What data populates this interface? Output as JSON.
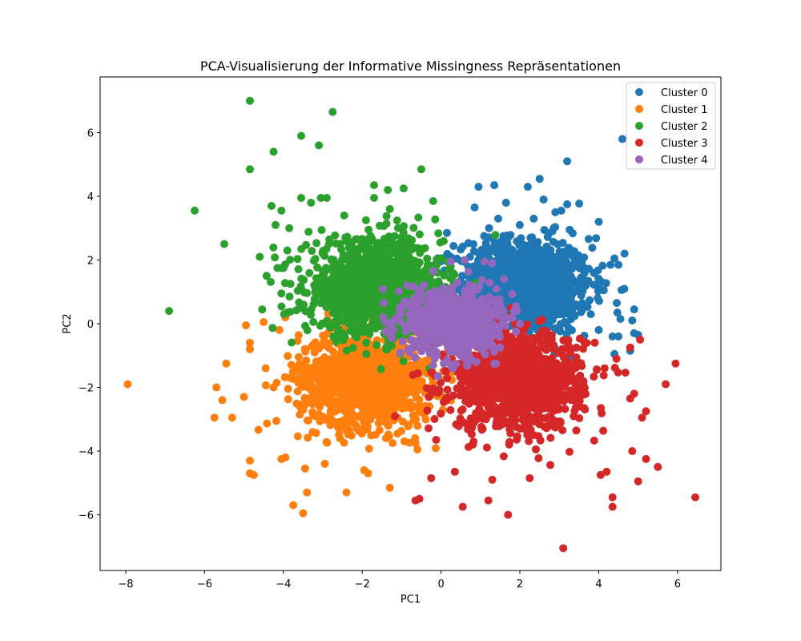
{
  "chart_data": {
    "type": "scatter",
    "title": "PCA-Visualisierung der Informative Missingness Repräsentationen",
    "xlabel": "PC1",
    "ylabel": "PC2",
    "xlim": [
      -8.65,
      7.1
    ],
    "ylim": [
      -7.75,
      7.75
    ],
    "xticks": [
      -8,
      -6,
      -4,
      -2,
      0,
      2,
      4,
      6
    ],
    "yticks": [
      -6,
      -4,
      -2,
      0,
      2,
      4,
      6
    ],
    "xtick_labels": [
      "−8",
      "−6",
      "−4",
      "−2",
      "0",
      "2",
      "4",
      "6"
    ],
    "ytick_labels": [
      "−6",
      "−4",
      "−2",
      "0",
      "2",
      "4",
      "6"
    ],
    "grid": false,
    "legend_position": "upper right",
    "series": [
      {
        "name": "Cluster 0",
        "color": "#1f77b4",
        "center": [
          2.1,
          1.2
        ],
        "spread": [
          0.85,
          0.75
        ],
        "points": [
          [
            4.6,
            5.8
          ],
          [
            3.2,
            5.1
          ],
          [
            2.5,
            4.55
          ],
          [
            1.35,
            4.35
          ],
          [
            0.95,
            4.3
          ],
          [
            2.2,
            4.3
          ],
          [
            2.6,
            3.9
          ],
          [
            1.65,
            3.8
          ],
          [
            3.2,
            3.75
          ],
          [
            3.05,
            3.55
          ],
          [
            2.9,
            3.5
          ],
          [
            0.85,
            3.65
          ],
          [
            4.0,
            3.2
          ],
          [
            1.45,
            3.3
          ],
          [
            2.35,
            3.3
          ],
          [
            0.15,
            2.85
          ],
          [
            4.4,
            2.05
          ],
          [
            4.3,
            1.85
          ],
          [
            4.5,
            1.85
          ],
          [
            4.9,
            0.45
          ],
          [
            4.55,
            0.15
          ],
          [
            4.85,
            0.1
          ],
          [
            4.9,
            -0.3
          ],
          [
            5.0,
            -0.35
          ],
          [
            4.5,
            -0.4
          ],
          [
            4.8,
            -0.85
          ],
          [
            4.4,
            -0.95
          ],
          [
            4.35,
            -0.4
          ],
          [
            4.0,
            -0.2
          ],
          [
            3.8,
            0.3
          ],
          [
            3.3,
            0.8
          ]
        ]
      },
      {
        "name": "Cluster 1",
        "color": "#ff7f0e",
        "center": [
          -1.9,
          -1.75
        ],
        "spread": [
          0.85,
          0.75
        ],
        "points": [
          [
            -7.95,
            -1.9
          ],
          [
            -5.75,
            -2.95
          ],
          [
            -5.7,
            -2.0
          ],
          [
            -5.55,
            -2.4
          ],
          [
            -5.3,
            -2.95
          ],
          [
            -5.0,
            -2.3
          ],
          [
            -4.95,
            -0.05
          ],
          [
            -4.85,
            -0.6
          ],
          [
            -4.85,
            -0.8
          ],
          [
            -5.45,
            -1.25
          ],
          [
            -4.85,
            -4.3
          ],
          [
            -4.85,
            -4.7
          ],
          [
            -4.75,
            -4.75
          ],
          [
            -4.5,
            0.05
          ],
          [
            -4.45,
            -1.4
          ],
          [
            -3.75,
            -5.7
          ],
          [
            -3.5,
            -5.95
          ],
          [
            -3.4,
            -5.3
          ],
          [
            -2.4,
            -5.3
          ],
          [
            -1.3,
            -5.15
          ],
          [
            -4.05,
            -4.25
          ],
          [
            -3.95,
            -4.2
          ],
          [
            -3.45,
            -4.55
          ],
          [
            -1.95,
            -4.6
          ],
          [
            -1.85,
            -4.7
          ],
          [
            -2.95,
            -4.4
          ],
          [
            -0.6,
            -3.95
          ],
          [
            -0.65,
            -3.75
          ],
          [
            -4.1,
            -0.2
          ],
          [
            -3.95,
            0.2
          ],
          [
            -4.25,
            -2.0
          ]
        ]
      },
      {
        "name": "Cluster 2",
        "color": "#2ca02c",
        "center": [
          -1.7,
          1.15
        ],
        "spread": [
          0.85,
          0.75
        ],
        "points": [
          [
            -4.85,
            7.0
          ],
          [
            -2.75,
            6.65
          ],
          [
            -3.55,
            5.9
          ],
          [
            -3.1,
            5.6
          ],
          [
            -4.25,
            5.4
          ],
          [
            -4.85,
            4.85
          ],
          [
            -0.5,
            4.85
          ],
          [
            -6.25,
            3.55
          ],
          [
            -5.5,
            2.5
          ],
          [
            -4.6,
            2.1
          ],
          [
            -6.9,
            0.4
          ],
          [
            -4.3,
            3.7
          ],
          [
            -4.05,
            3.55
          ],
          [
            -3.55,
            3.95
          ],
          [
            -3.3,
            3.8
          ],
          [
            -3.05,
            3.95
          ],
          [
            -2.9,
            3.95
          ],
          [
            -1.7,
            4.35
          ],
          [
            -1.7,
            3.95
          ],
          [
            -1.35,
            4.2
          ],
          [
            -0.95,
            4.25
          ],
          [
            -0.2,
            3.85
          ],
          [
            -1.3,
            3.6
          ],
          [
            -4.2,
            3.1
          ],
          [
            -3.85,
            3.0
          ],
          [
            -4.15,
            1.75
          ],
          [
            -4.0,
            1.75
          ],
          [
            -3.9,
            2.3
          ],
          [
            -4.05,
            0.95
          ],
          [
            -3.9,
            0.35
          ],
          [
            -1.9,
            -0.6
          ]
        ]
      },
      {
        "name": "Cluster 3",
        "color": "#d62728",
        "center": [
          1.9,
          -1.8
        ],
        "spread": [
          0.85,
          0.75
        ],
        "points": [
          [
            3.1,
            -7.05
          ],
          [
            0.55,
            -5.75
          ],
          [
            1.2,
            -5.55
          ],
          [
            1.7,
            -6.0
          ],
          [
            -0.55,
            -5.5
          ],
          [
            -0.65,
            -5.55
          ],
          [
            6.45,
            -5.45
          ],
          [
            4.35,
            -5.45
          ],
          [
            4.35,
            -5.75
          ],
          [
            5.0,
            -4.95
          ],
          [
            4.05,
            -4.75
          ],
          [
            4.2,
            -4.65
          ],
          [
            5.5,
            -4.5
          ],
          [
            5.2,
            -4.25
          ],
          [
            4.85,
            -4.0
          ],
          [
            5.95,
            -1.25
          ],
          [
            5.7,
            -1.9
          ],
          [
            5.2,
            -2.75
          ],
          [
            5.1,
            -2.95
          ],
          [
            5.05,
            -0.5
          ],
          [
            4.8,
            -0.75
          ],
          [
            4.45,
            -1.1
          ],
          [
            4.15,
            -1.4
          ],
          [
            3.9,
            -0.6
          ],
          [
            3.95,
            -1.45
          ],
          [
            4.9,
            -2.2
          ],
          [
            4.8,
            -2.35
          ],
          [
            1.3,
            -4.9
          ],
          [
            2.25,
            -4.85
          ],
          [
            0.35,
            -4.65
          ],
          [
            -0.25,
            -4.85
          ]
        ]
      },
      {
        "name": "Cluster 4",
        "color": "#9467bd",
        "center": [
          0.3,
          0.05
        ],
        "spread": [
          0.55,
          0.48
        ],
        "points": [
          [
            -1.45,
            0.65
          ],
          [
            -1.4,
            -0.25
          ],
          [
            -0.85,
            1.2
          ],
          [
            -0.2,
            1.65
          ],
          [
            0.6,
            2.0
          ],
          [
            1.1,
            1.95
          ],
          [
            1.3,
            1.9
          ],
          [
            1.6,
            1.4
          ],
          [
            1.9,
            0.55
          ],
          [
            2.0,
            0.0
          ],
          [
            1.9,
            -0.25
          ],
          [
            1.5,
            -0.75
          ],
          [
            0.9,
            -1.2
          ],
          [
            0.3,
            -1.4
          ],
          [
            -0.2,
            -1.3
          ],
          [
            -0.8,
            -0.9
          ],
          [
            -1.25,
            -0.45
          ],
          [
            0.25,
            1.95
          ]
        ]
      }
    ]
  }
}
